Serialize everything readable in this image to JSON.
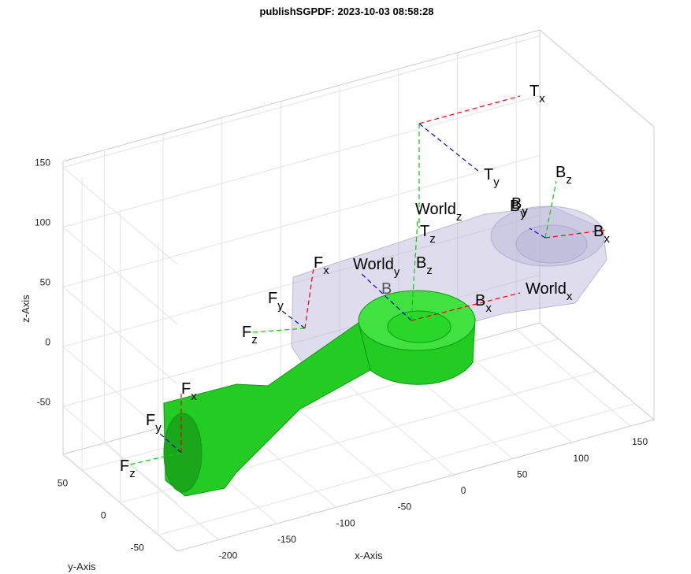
{
  "title": "publishSGPDF: 2023-10-03 08:58:28",
  "axes": {
    "x_label": "x-Axis",
    "y_label": "y-Axis",
    "z_label": "z-Axis",
    "x_ticks": [
      -200,
      -150,
      -100,
      -50,
      0,
      50,
      100,
      150
    ],
    "y_ticks": [
      50,
      0,
      -50
    ],
    "z_ticks": [
      150,
      100,
      50,
      0,
      -50
    ]
  },
  "frames": [
    {
      "main": "F",
      "sub": "x"
    },
    {
      "main": "F",
      "sub": "y"
    },
    {
      "main": "F",
      "sub": "z"
    },
    {
      "main": "F",
      "sub": "x"
    },
    {
      "main": "F",
      "sub": "y"
    },
    {
      "main": "F",
      "sub": "z"
    },
    {
      "main": "T",
      "sub": "x"
    },
    {
      "main": "T",
      "sub": "y"
    },
    {
      "main": "T",
      "sub": "z"
    },
    {
      "main": "B",
      "sub": "x"
    },
    {
      "main": "B",
      "sub": "y"
    },
    {
      "main": "B",
      "sub": "z"
    },
    {
      "main": "B",
      "sub": "x"
    },
    {
      "main": "B",
      "sub": "y"
    },
    {
      "main": "B",
      "sub": "z"
    },
    {
      "main": "World",
      "sub": "x"
    },
    {
      "main": "World",
      "sub": "y"
    },
    {
      "main": "World",
      "sub": "z"
    }
  ],
  "body_label": "B"
}
